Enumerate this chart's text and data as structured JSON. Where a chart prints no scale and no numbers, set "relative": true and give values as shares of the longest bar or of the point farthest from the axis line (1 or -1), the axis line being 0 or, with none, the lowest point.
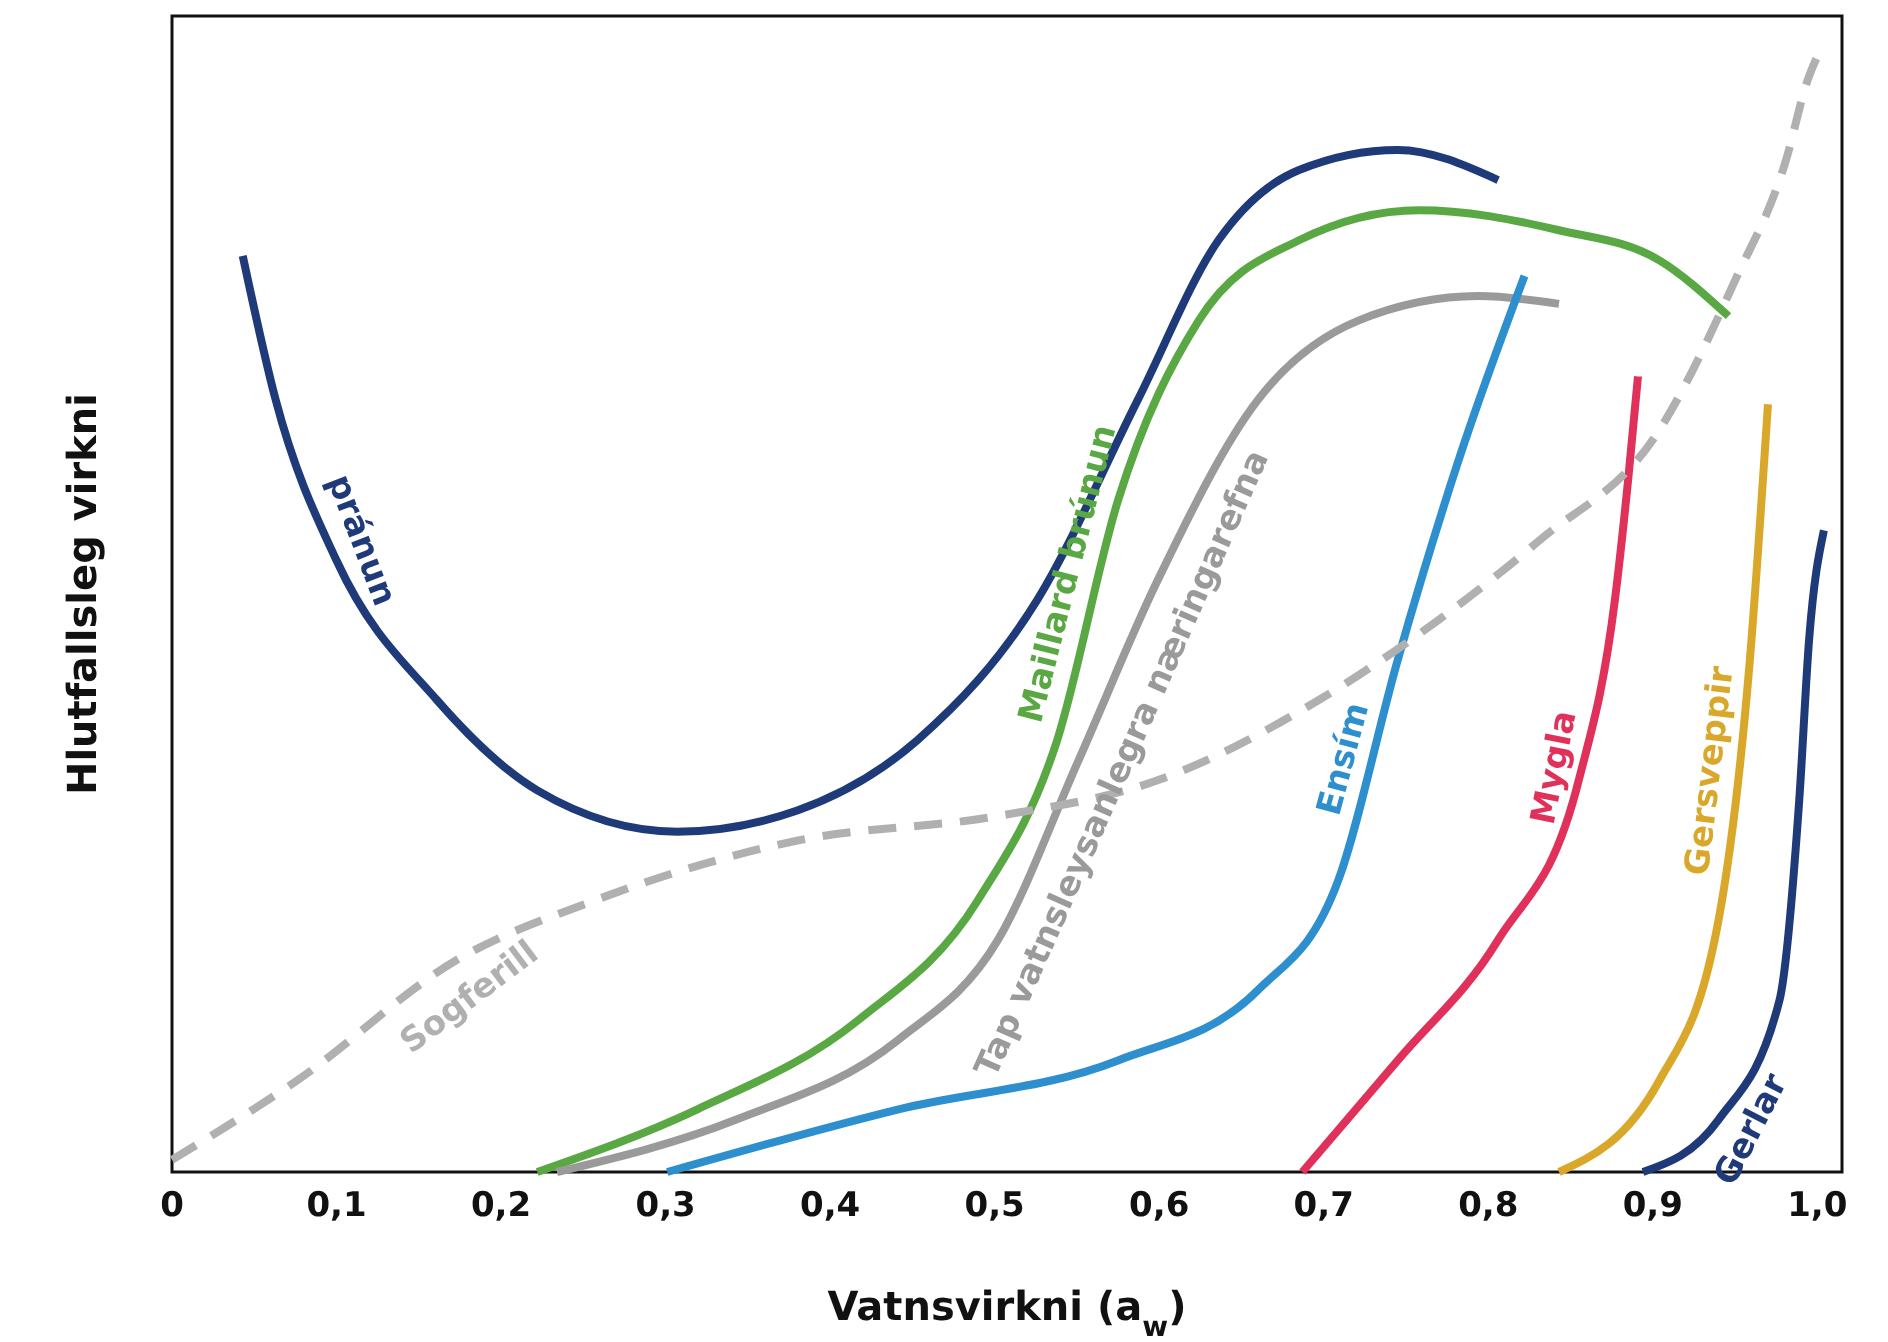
{
  "chart_data": {
    "type": "line",
    "relative": true,
    "xlabel": "Vatnsvirkni (a$_{w}$)",
    "ylabel": "Hlutfallsleg virkni",
    "xlim": [
      0,
      1.015
    ],
    "xticks": [
      0,
      {
        "value": 0.1,
        "label": "0,1"
      },
      {
        "value": 0.2,
        "label": "0,2"
      },
      {
        "value": 0.3,
        "label": "0,3"
      },
      {
        "value": 0.4,
        "label": "0,4"
      },
      {
        "value": 0.5,
        "label": "0,5"
      },
      {
        "value": 0.6,
        "label": "0,6"
      },
      {
        "value": 0.7,
        "label": "0,7"
      },
      {
        "value": 0.8,
        "label": "0,8"
      },
      {
        "value": 0.9,
        "label": "0,9"
      },
      {
        "value": 1.0,
        "label": "1,0"
      }
    ],
    "grid": false,
    "series": [
      {
        "name": "pránun",
        "color": "#1f3a78",
        "line_style": "solid",
        "x": [
          0.043,
          0.063,
          0.1,
          0.161,
          0.222,
          0.307,
          0.38,
          0.453,
          0.526,
          0.587,
          0.636,
          0.685,
          0.745,
          0.806
        ],
        "values": [
          0.821,
          0.692,
          0.548,
          0.423,
          0.342,
          0.305,
          0.324,
          0.387,
          0.513,
          0.692,
          0.835,
          0.898,
          0.916,
          0.889
        ]
      },
      {
        "name": "Maillard brúnun",
        "color": "#5aa843",
        "line_style": "solid",
        "x": [
          0.222,
          0.319,
          0.417,
          0.49,
          0.538,
          0.575,
          0.624,
          0.685,
          0.758,
          0.843,
          0.904,
          0.946
        ],
        "values": [
          0,
          0.056,
          0.136,
          0.244,
          0.387,
          0.602,
          0.763,
          0.835,
          0.862,
          0.844,
          0.817,
          0.767
        ]
      },
      {
        "name": "Tap vatnsleysanlegra næringarefna",
        "color": "#9a9a9a",
        "line_style": "solid",
        "x": [
          0.234,
          0.343,
          0.441,
          0.502,
          0.551,
          0.599,
          0.66,
          0.721,
          0.794,
          0.843
        ],
        "values": [
          0,
          0.047,
          0.118,
          0.208,
          0.369,
          0.53,
          0.692,
          0.763,
          0.785,
          0.778
        ]
      },
      {
        "name": "Ensím",
        "color": "#2e8fce",
        "line_style": "solid",
        "x": [
          0.301,
          0.441,
          0.575,
          0.66,
          0.709,
          0.745,
          0.782,
          0.822
        ],
        "values": [
          0,
          0.056,
          0.1,
          0.163,
          0.262,
          0.459,
          0.638,
          0.803
        ]
      },
      {
        "name": "Mygla",
        "color": "#e0315a",
        "line_style": "solid",
        "x": [
          0.687,
          0.745,
          0.806,
          0.855,
          0.877,
          0.885,
          0.891
        ],
        "values": [
          0,
          0.1,
          0.208,
          0.351,
          0.513,
          0.62,
          0.713
        ]
      },
      {
        "name": "Gersveppir",
        "color": "#d9a82a",
        "line_style": "solid",
        "x": [
          0.843,
          0.904,
          0.94,
          0.959,
          0.97
        ],
        "values": [
          0,
          0.082,
          0.226,
          0.459,
          0.688
        ]
      },
      {
        "name": "Gerlar",
        "color": "#1f3a78",
        "line_style": "solid",
        "x": [
          0.894,
          0.94,
          0.977,
          0.989,
          0.995,
          1.004
        ],
        "values": [
          0,
          0.047,
          0.154,
          0.333,
          0.477,
          0.575
        ]
      },
      {
        "name": "Sogferill",
        "color": "#b0b0b0",
        "line_style": "dashed",
        "x": [
          0,
          0.076,
          0.173,
          0.258,
          0.38,
          0.502,
          0.599,
          0.697,
          0.77,
          0.831,
          0.904,
          0.95,
          0.981,
          0.994,
          1.0
        ],
        "values": [
          0.011,
          0.082,
          0.19,
          0.244,
          0.297,
          0.319,
          0.351,
          0.423,
          0.495,
          0.566,
          0.665,
          0.799,
          0.907,
          0.978,
          1.0
        ]
      }
    ]
  }
}
